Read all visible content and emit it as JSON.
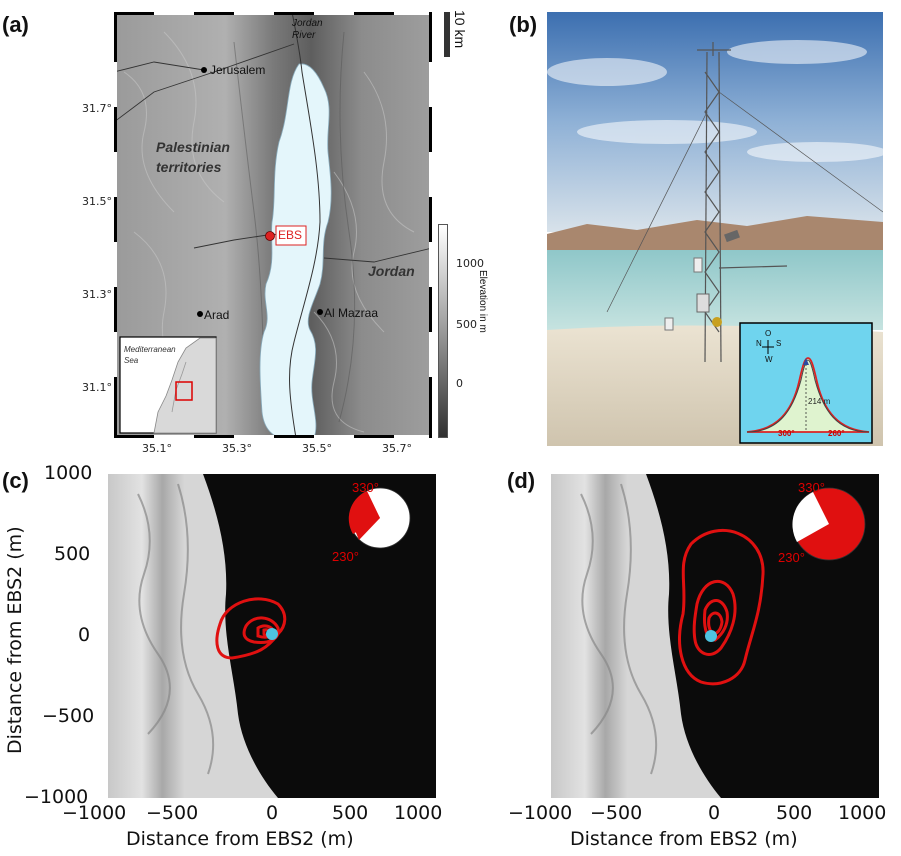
{
  "panel_a": {
    "label": "(a)",
    "scale_bar": "10 km",
    "lat_ticks": [
      "31.7°",
      "31.5°",
      "31.3°",
      "31.1°"
    ],
    "lon_ticks": [
      "35.1°",
      "35.3°",
      "35.5°",
      "35.7°"
    ],
    "places": {
      "jerusalem": "Jerusalem",
      "jordan_river": "Jordan River",
      "palestinian": "Palestinian territories",
      "jordan": "Jordan",
      "arad": "Arad",
      "al_mazraa": "Al Mazraa",
      "ebs": "EBS"
    },
    "inset": {
      "sea": "Mediterranean Sea"
    },
    "colorbar": {
      "label": "Elevation in m",
      "ticks": [
        "1000",
        "500",
        "0"
      ]
    }
  },
  "panel_b": {
    "label": "(b)",
    "compass": {
      "n": "N",
      "s": "S",
      "o": "O",
      "w": "W"
    },
    "height": "214 m",
    "angle_left": "300°",
    "angle_right": "260°"
  },
  "panel_c": {
    "label": "(c)",
    "pie_top": "330°",
    "pie_bottom": "230°",
    "y_ticks": [
      "1000",
      "500",
      "0",
      "−500",
      "−1000"
    ],
    "x_ticks": [
      "−1000",
      "−500",
      "0",
      "500",
      "1000"
    ],
    "ylabel": "Distance from EBS2 (m)",
    "xlabel": "Distance from EBS2 (m)"
  },
  "panel_d": {
    "label": "(d)",
    "pie_top": "330°",
    "pie_bottom": "230°",
    "x_ticks": [
      "−1000",
      "−500",
      "0",
      "500",
      "1000"
    ],
    "xlabel": "Distance from EBS2 (m)"
  }
}
